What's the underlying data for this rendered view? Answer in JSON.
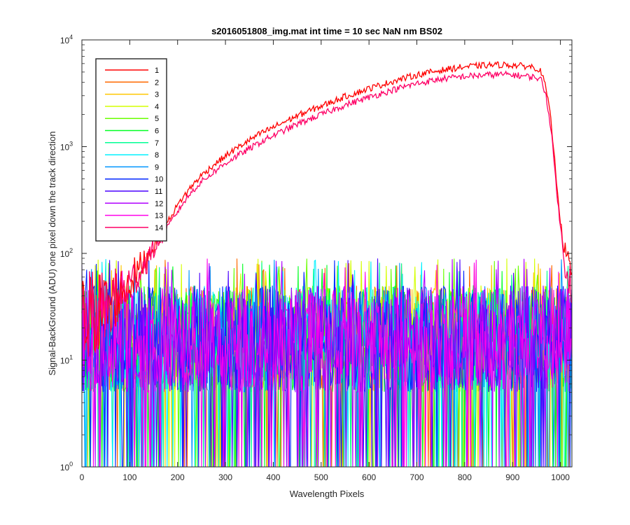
{
  "chart_data": {
    "type": "line",
    "title": "s2016051808_img.mat int time = 10 sec  NaN nm BS02",
    "xlabel": "Wavelength Pixels",
    "ylabel": "Signal-BackGround (ADU) one pixel down the track direction",
    "xlim": [
      0,
      1024
    ],
    "ylim": [
      1,
      10000
    ],
    "yscale": "log",
    "grid": false,
    "x_ticks": [
      "0",
      "100",
      "200",
      "300",
      "400",
      "500",
      "600",
      "700",
      "800",
      "900",
      "1000"
    ],
    "y_ticks": [
      {
        "base": "10",
        "exp": "0",
        "value": 1
      },
      {
        "base": "10",
        "exp": "1",
        "value": 10
      },
      {
        "base": "10",
        "exp": "2",
        "value": 100
      },
      {
        "base": "10",
        "exp": "3",
        "value": 1000
      },
      {
        "base": "10",
        "exp": "4",
        "value": 10000
      }
    ],
    "legend_position": "top-left",
    "curve_x": [
      0,
      15,
      30,
      50,
      70,
      90,
      110,
      130,
      150,
      170,
      190,
      210,
      230,
      250,
      280,
      310,
      340,
      370,
      400,
      450,
      500,
      550,
      600,
      650,
      700,
      750,
      800,
      850,
      880,
      900,
      920,
      940,
      950,
      960,
      970,
      980,
      990,
      1000,
      1010,
      1024
    ],
    "noise_profile": {
      "x_range": [
        0,
        1024
      ],
      "typical_min": 5,
      "typical_max": 50,
      "min": 1,
      "max": 90
    },
    "series": [
      {
        "name": "1",
        "color": "#ff0000",
        "values": [
          22,
          24,
          27,
          32,
          38,
          48,
          62,
          85,
          120,
          165,
          240,
          330,
          430,
          540,
          700,
          880,
          1080,
          1300,
          1520,
          1950,
          2400,
          2950,
          3500,
          4100,
          4700,
          5200,
          5600,
          5800,
          5850,
          5800,
          5700,
          5600,
          5450,
          5000,
          3500,
          1800,
          600,
          200,
          100,
          60
        ]
      },
      {
        "name": "2",
        "color": "#ff6a00",
        "values": []
      },
      {
        "name": "3",
        "color": "#ffc600",
        "values": []
      },
      {
        "name": "4",
        "color": "#d4ff00",
        "values": []
      },
      {
        "name": "5",
        "color": "#6aff00",
        "values": []
      },
      {
        "name": "6",
        "color": "#00ff22",
        "values": []
      },
      {
        "name": "7",
        "color": "#00ff95",
        "values": []
      },
      {
        "name": "8",
        "color": "#00f0ff",
        "values": []
      },
      {
        "name": "9",
        "color": "#0095ff",
        "values": []
      },
      {
        "name": "10",
        "color": "#0026ff",
        "values": []
      },
      {
        "name": "11",
        "color": "#4a00ff",
        "values": []
      },
      {
        "name": "12",
        "color": "#b000ff",
        "values": []
      },
      {
        "name": "13",
        "color": "#ff00ea",
        "values": []
      },
      {
        "name": "14",
        "color": "#ff0066",
        "values": [
          22,
          24,
          27,
          32,
          38,
          46,
          58,
          78,
          110,
          150,
          210,
          290,
          380,
          470,
          600,
          750,
          900,
          1080,
          1270,
          1620,
          2000,
          2450,
          2900,
          3400,
          3900,
          4300,
          4550,
          4700,
          4750,
          4700,
          4600,
          4500,
          4450,
          4200,
          3000,
          1500,
          500,
          170,
          80,
          50
        ]
      }
    ]
  }
}
